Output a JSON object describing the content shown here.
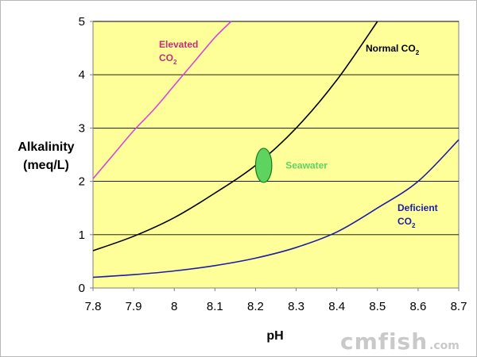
{
  "chart_data": {
    "type": "line",
    "xlabel": "pH",
    "ylabel_lines": [
      "Alkalinity",
      "(meq/L)"
    ],
    "xlim": [
      7.8,
      8.7
    ],
    "ylim": [
      0,
      5
    ],
    "x_ticks": [
      "7.8",
      "7.9",
      "8",
      "8.1",
      "8.2",
      "8.3",
      "8.4",
      "8.5",
      "8.6",
      "8.7"
    ],
    "y_ticks": [
      "0",
      "1",
      "2",
      "3",
      "4",
      "5"
    ],
    "grid": "horizontal",
    "plot_background": "#ffff99",
    "series": [
      {
        "key": "elevated",
        "label_main": "Elevated",
        "label_co": "CO",
        "label_sub": "2",
        "color": "#d946d9",
        "label_color": "#c0307a",
        "x": [
          7.8,
          7.85,
          7.9,
          7.95,
          8.0,
          8.05,
          8.1,
          8.14
        ],
        "y": [
          2.05,
          2.5,
          2.95,
          3.35,
          3.8,
          4.25,
          4.7,
          5.0
        ]
      },
      {
        "key": "normal",
        "label_main": "Normal CO",
        "label_co": "",
        "label_sub": "2",
        "color": "#000000",
        "label_color": "#000000",
        "x": [
          7.8,
          7.9,
          8.0,
          8.1,
          8.2,
          8.3,
          8.4,
          8.5
        ],
        "y": [
          0.7,
          0.97,
          1.32,
          1.78,
          2.3,
          3.0,
          3.9,
          5.0
        ]
      },
      {
        "key": "deficient",
        "label_main": "Deficient",
        "label_co": "CO",
        "label_sub": "2",
        "color": "#1c1ca8",
        "label_color": "#1c1ca8",
        "x": [
          7.8,
          7.9,
          8.0,
          8.1,
          8.2,
          8.3,
          8.4,
          8.5,
          8.6,
          8.7
        ],
        "y": [
          0.2,
          0.25,
          0.32,
          0.42,
          0.56,
          0.76,
          1.05,
          1.5,
          2.0,
          2.78
        ]
      }
    ],
    "annotations": [
      {
        "type": "ellipse",
        "x": 8.22,
        "y": 2.3,
        "rx": 0.02,
        "ry": 0.32,
        "fill": "#5fd35f",
        "stroke": "#1a7a1a"
      },
      {
        "type": "label",
        "text": "Seawater",
        "x": 8.27,
        "y": 2.3,
        "color": "#5fd35f"
      }
    ]
  },
  "watermark": {
    "main": "cmfish",
    "suffix": ".com"
  }
}
